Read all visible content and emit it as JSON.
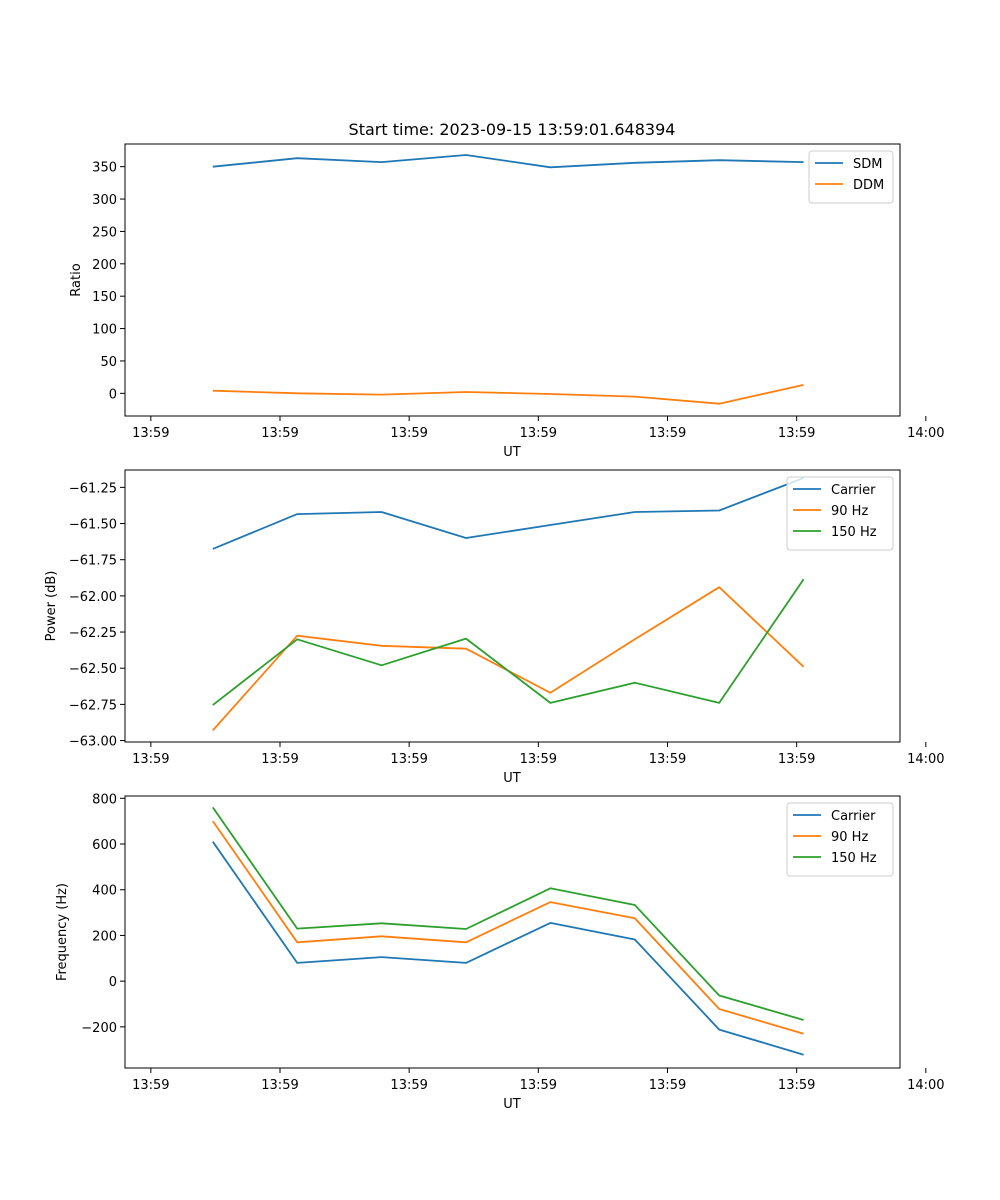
{
  "colors": {
    "c0": "#1f77b4",
    "c1": "#ff7f0e",
    "c2": "#2ca02c"
  },
  "chart_data": [
    {
      "type": "line",
      "title": "Start time: 2023-09-15 13:59:01.648394",
      "xlabel": "UT",
      "ylabel": "Ratio",
      "xlim": [
        -0.3,
        8.7
      ],
      "x_ticks": [
        0,
        1.5,
        3,
        4.5,
        6,
        7.5,
        9
      ],
      "x_tick_labels": [
        "13:59",
        "13:59",
        "13:59",
        "13:59",
        "13:59",
        "13:59",
        "14:00"
      ],
      "ylim": [
        -35,
        385
      ],
      "y_ticks": [
        0,
        50,
        100,
        150,
        200,
        250,
        300,
        350
      ],
      "y_tick_labels": [
        "0",
        "50",
        "100",
        "150",
        "200",
        "250",
        "300",
        "350"
      ],
      "legend": "top-right",
      "x": [
        0.72,
        1.7,
        2.68,
        3.66,
        4.64,
        5.62,
        6.6,
        7.58
      ],
      "series": [
        {
          "name": "SDM",
          "color": "#1f77b4",
          "values": [
            350,
            363,
            357,
            368,
            349,
            356,
            360,
            357
          ]
        },
        {
          "name": "DDM",
          "color": "#ff7f0e",
          "values": [
            4,
            0,
            -2,
            2,
            -1,
            -5,
            -16,
            13
          ]
        }
      ]
    },
    {
      "type": "line",
      "title": "",
      "xlabel": "UT",
      "ylabel": "Power (dB)",
      "xlim": [
        -0.3,
        8.7
      ],
      "x_ticks": [
        0,
        1.5,
        3,
        4.5,
        6,
        7.5,
        9
      ],
      "x_tick_labels": [
        "13:59",
        "13:59",
        "13:59",
        "13:59",
        "13:59",
        "13:59",
        "14:00"
      ],
      "ylim": [
        -63.01,
        -61.13
      ],
      "y_ticks": [
        -63.0,
        -62.75,
        -62.5,
        -62.25,
        -62.0,
        -61.75,
        -61.5,
        -61.25
      ],
      "y_tick_labels": [
        "−63.00",
        "−62.75",
        "−62.50",
        "−62.25",
        "−62.00",
        "−61.75",
        "−61.50",
        "−61.25"
      ],
      "legend": "top-right",
      "x": [
        0.72,
        1.7,
        2.68,
        3.66,
        4.64,
        5.62,
        6.6,
        7.58
      ],
      "series": [
        {
          "name": "Carrier",
          "color": "#1f77b4",
          "values": [
            -61.675,
            -61.435,
            -61.42,
            -61.6,
            -61.51,
            -61.42,
            -61.41,
            -61.185
          ]
        },
        {
          "name": "90 Hz",
          "color": "#ff7f0e",
          "values": [
            -62.93,
            -62.275,
            -62.345,
            -62.365,
            -62.67,
            -62.3,
            -61.94,
            -62.49
          ]
        },
        {
          "name": "150 Hz",
          "color": "#2ca02c",
          "values": [
            -62.755,
            -62.3,
            -62.48,
            -62.295,
            -62.74,
            -62.6,
            -62.74,
            -61.885
          ]
        }
      ]
    },
    {
      "type": "line",
      "title": "",
      "xlabel": "UT",
      "ylabel": "Frequency (Hz)",
      "xlim": [
        -0.3,
        8.7
      ],
      "x_ticks": [
        0,
        1.5,
        3,
        4.5,
        6,
        7.5,
        9
      ],
      "x_tick_labels": [
        "13:59",
        "13:59",
        "13:59",
        "13:59",
        "13:59",
        "13:59",
        "14:00"
      ],
      "ylim": [
        -380,
        810
      ],
      "y_ticks": [
        -200,
        0,
        200,
        400,
        600,
        800
      ],
      "y_tick_labels": [
        "−200",
        "0",
        "200",
        "400",
        "600",
        "800"
      ],
      "legend": "top-right",
      "x": [
        0.72,
        1.7,
        2.68,
        3.66,
        4.64,
        5.62,
        6.6,
        7.58
      ],
      "series": [
        {
          "name": "Carrier",
          "color": "#1f77b4",
          "values": [
            610,
            80,
            105,
            80,
            255,
            182,
            -212,
            -322
          ]
        },
        {
          "name": "90 Hz",
          "color": "#ff7f0e",
          "values": [
            700,
            170,
            196,
            170,
            346,
            275,
            -122,
            -230
          ]
        },
        {
          "name": "150 Hz",
          "color": "#2ca02c",
          "values": [
            760,
            230,
            253,
            228,
            406,
            333,
            -63,
            -170
          ]
        }
      ]
    }
  ]
}
